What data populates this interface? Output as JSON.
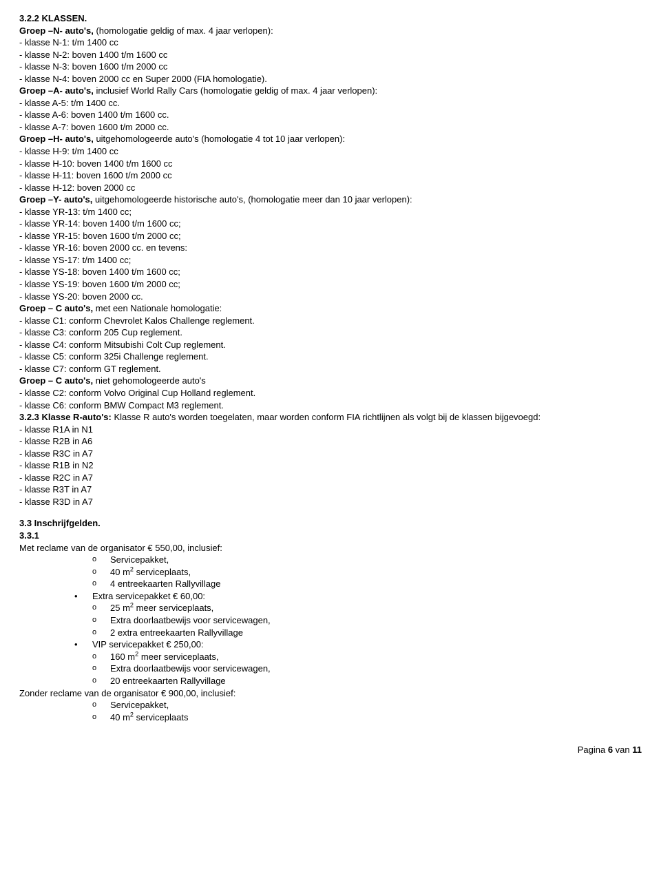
{
  "s322": {
    "heading": "3.2.2 KLASSEN.",
    "groepN_title": "Groep –N- auto's,",
    "groepN_rest": " (homologatie geldig of max. 4 jaar verlopen):",
    "n_lines": [
      "- klasse N-1: t/m 1400 cc",
      "- klasse N-2: boven 1400 t/m 1600 cc",
      "- klasse N-3: boven 1600 t/m 2000 cc",
      "- klasse N-4: boven 2000 cc en Super 2000 (FIA homologatie)."
    ],
    "groepA_title": "Groep –A- auto's,",
    "groepA_rest": " inclusief  World Rally Cars (homologatie geldig of max. 4 jaar verlopen):",
    "a_lines": [
      "- klasse A-5: t/m 1400 cc.",
      "- klasse A-6: boven 1400 t/m 1600 cc.",
      "- klasse A-7: boven 1600 t/m 2000 cc."
    ],
    "groepH_title": "Groep –H- auto's,",
    "groepH_rest": " uitgehomologeerde auto's (homologatie 4 tot 10 jaar verlopen):",
    "h_lines": [
      "- klasse H-9: t/m 1400 cc",
      "- klasse H-10: boven 1400 t/m 1600 cc",
      "- klasse H-11: boven 1600 t/m 2000 cc",
      "- klasse H-12: boven 2000 cc"
    ],
    "groepY_title": "Groep –Y- auto's,",
    "groepY_rest": " uitgehomologeerde historische auto's, (homologatie meer dan 10 jaar verlopen):",
    "y_lines": [
      "- klasse YR-13: t/m 1400 cc;",
      "- klasse YR-14: boven 1400 t/m 1600 cc;",
      "- klasse YR-15: boven 1600 t/m 2000 cc;",
      "- klasse YR-16: boven 2000 cc. en tevens:",
      "- klasse YS-17: t/m 1400 cc;",
      "- klasse YS-18: boven 1400 t/m 1600 cc;",
      "- klasse YS-19: boven 1600 t/m 2000 cc;",
      "- klasse YS-20: boven 2000 cc."
    ],
    "groepC1_title": "Groep – C auto's,",
    "groepC1_rest": " met een Nationale homologatie:",
    "c1_lines": [
      "- klasse C1: conform Chevrolet Kalos Challenge reglement.",
      "- klasse C3: conform 205 Cup reglement.",
      "- klasse C4: conform Mitsubishi Colt Cup reglement.",
      "- klasse C5: conform 325i Challenge reglement.",
      "- klasse C7: conform GT reglement."
    ],
    "groepC2_title": "Groep – C auto's,",
    "groepC2_rest": " niet gehomologeerde auto's",
    "c2_lines": [
      "- klasse C2: conform Volvo Original Cup Holland reglement.",
      "- klasse C6: conform BMW Compact M3 reglement."
    ]
  },
  "s323": {
    "title": "3.2.3 Klasse R-auto's:",
    "rest": " Klasse R auto's worden toegelaten, maar worden conform  FIA  richtlijnen als volgt bij de klassen bijgevoegd:",
    "lines": [
      "- klasse R1A in N1",
      "- klasse R2B in A6",
      "- klasse R3C in A7",
      "- klasse R1B in N2",
      "- klasse R2C in A7",
      "- klasse R3T in A7",
      "- klasse R3D in A7"
    ]
  },
  "s33": {
    "heading": "3.3 Inschrijfgelden.",
    "sub": "3.3.1",
    "line_met": "Met reclame van de organisator € 550,00, inclusief:",
    "met_items": [
      {
        "text": "Servicepakket,",
        "sup": null,
        "m": null,
        "after": null
      },
      {
        "text": "40 m",
        "sup": "2",
        "after": " serviceplaats,"
      },
      {
        "text": "4 entreekaarten Rallyvillage",
        "sup": null,
        "after": null
      }
    ],
    "extra_label": "Extra servicepakket € 60,00:",
    "extra_items": [
      {
        "text": "25 m",
        "sup": "2",
        "after": " meer serviceplaats,"
      },
      {
        "text": "Extra doorlaatbewijs voor servicewagen,",
        "sup": null,
        "after": null
      },
      {
        "text": "2 extra entreekaarten Rallyvillage",
        "sup": null,
        "after": null
      }
    ],
    "vip_label": "VIP servicepakket € 250,00:",
    "vip_items": [
      {
        "text": "160 m",
        "sup": "2",
        "after": " meer serviceplaats,"
      },
      {
        "text": "Extra doorlaatbewijs voor servicewagen,",
        "sup": null,
        "after": null
      },
      {
        "text": "20 entreekaarten Rallyvillage",
        "sup": null,
        "after": null
      }
    ],
    "zonder": "Zonder reclame van de organisator € 900,00, inclusief:",
    "zonder_items": [
      {
        "text": "Servicepakket,",
        "sup": null,
        "after": null
      },
      {
        "text": "40 m",
        "sup": "2",
        "after": " serviceplaats"
      }
    ]
  },
  "footer": {
    "prefix": "Pagina ",
    "num": "6",
    "mid": " van ",
    "total": "11"
  }
}
